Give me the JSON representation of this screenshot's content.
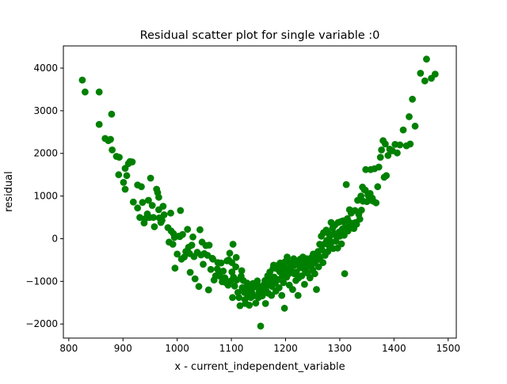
{
  "chart_data": {
    "type": "scatter",
    "title": "Residual scatter plot for single variable :0",
    "xlabel": "x - current_independent_variable",
    "ylabel": "residual",
    "xlim": [
      790,
      1515
    ],
    "ylim": [
      -2330,
      4520
    ],
    "xticks": [
      800,
      900,
      1000,
      1100,
      1200,
      1300,
      1400,
      1500
    ],
    "yticks": [
      -2000,
      -1000,
      0,
      1000,
      2000,
      3000,
      4000
    ],
    "grid": false,
    "legend": "none",
    "marker_color": "#008000",
    "series": [
      {
        "points": [
          [
            825,
            3720
          ],
          [
            830,
            3440
          ],
          [
            856,
            3440
          ],
          [
            856,
            2680
          ],
          [
            867,
            2350
          ],
          [
            873,
            2300
          ],
          [
            877,
            2330
          ],
          [
            880,
            2080
          ],
          [
            879,
            2920
          ],
          [
            888,
            1930
          ],
          [
            893,
            1910
          ],
          [
            892,
            1500
          ],
          [
            901,
            1320
          ],
          [
            904,
            1650
          ],
          [
            904,
            1160
          ],
          [
            907,
            1480
          ],
          [
            910,
            1760
          ],
          [
            913,
            1810
          ],
          [
            917,
            1800
          ],
          [
            919,
            860
          ],
          [
            927,
            720
          ],
          [
            927,
            1260
          ],
          [
            931,
            500
          ],
          [
            934,
            1220
          ],
          [
            936,
            850
          ],
          [
            939,
            370
          ],
          [
            941,
            470
          ],
          [
            945,
            580
          ],
          [
            947,
            900
          ],
          [
            949,
            500
          ],
          [
            951,
            1420
          ],
          [
            954,
            780
          ],
          [
            956,
            500
          ],
          [
            958,
            280
          ],
          [
            962,
            1160
          ],
          [
            964,
            1080
          ],
          [
            966,
            970
          ],
          [
            966,
            680
          ],
          [
            967,
            490
          ],
          [
            970,
            380
          ],
          [
            972,
            430
          ],
          [
            974,
            760
          ],
          [
            976,
            560
          ],
          [
            983,
            260
          ],
          [
            985,
            -80
          ],
          [
            988,
            600
          ],
          [
            989,
            180
          ],
          [
            992,
            -130
          ],
          [
            993,
            120
          ],
          [
            995,
            30
          ],
          [
            996,
            -690
          ],
          [
            1000,
            -360
          ],
          [
            1003,
            60
          ],
          [
            1005,
            50
          ],
          [
            1006,
            660
          ],
          [
            1008,
            -480
          ],
          [
            1010,
            100
          ],
          [
            1013,
            -430
          ],
          [
            1016,
            -300
          ],
          [
            1019,
            220
          ],
          [
            1021,
            -200
          ],
          [
            1023,
            -350
          ],
          [
            1024,
            -790
          ],
          [
            1027,
            -150
          ],
          [
            1029,
            40
          ],
          [
            1031,
            -420
          ],
          [
            1033,
            -940
          ],
          [
            1037,
            -320
          ],
          [
            1040,
            -1120
          ],
          [
            1042,
            210
          ],
          [
            1044,
            -380
          ],
          [
            1046,
            -80
          ],
          [
            1048,
            -600
          ],
          [
            1050,
            -350
          ],
          [
            1053,
            -160
          ],
          [
            1056,
            -390
          ],
          [
            1058,
            -1200
          ],
          [
            1059,
            -150
          ],
          [
            1062,
            -720
          ],
          [
            1065,
            -460
          ],
          [
            1066,
            -480
          ],
          [
            1068,
            -970
          ],
          [
            1071,
            -870
          ],
          [
            1074,
            -710
          ],
          [
            1075,
            -560
          ],
          [
            1077,
            -780
          ],
          [
            1079,
            -880
          ],
          [
            1081,
            -570
          ],
          [
            1083,
            -1010
          ],
          [
            1085,
            -760
          ],
          [
            1088,
            -920
          ],
          [
            1090,
            -1030
          ],
          [
            1092,
            -520
          ],
          [
            1094,
            -1090
          ],
          [
            1095,
            -500
          ],
          [
            1097,
            -340
          ],
          [
            1099,
            -990
          ],
          [
            1101,
            -780
          ],
          [
            1101,
            -560
          ],
          [
            1102,
            -1380
          ],
          [
            1103,
            -130
          ],
          [
            1104,
            -900
          ],
          [
            1106,
            -1110
          ],
          [
            1108,
            -660
          ],
          [
            1109,
            -440
          ],
          [
            1110,
            -970
          ],
          [
            1112,
            -1260
          ],
          [
            1114,
            -1380
          ],
          [
            1116,
            -1570
          ],
          [
            1118,
            -880
          ],
          [
            1119,
            -750
          ],
          [
            1120,
            -1150
          ],
          [
            1122,
            -980
          ],
          [
            1124,
            -1260
          ],
          [
            1125,
            -1430
          ],
          [
            1126,
            -1520
          ],
          [
            1127,
            -1210
          ],
          [
            1129,
            -1040
          ],
          [
            1130,
            -1310
          ],
          [
            1131,
            -1140
          ],
          [
            1133,
            -1560
          ],
          [
            1135,
            -1200
          ],
          [
            1136,
            -1380
          ],
          [
            1138,
            -1270
          ],
          [
            1140,
            -1050
          ],
          [
            1141,
            -1340
          ],
          [
            1143,
            -1130
          ],
          [
            1145,
            -1510
          ],
          [
            1146,
            -1070
          ],
          [
            1148,
            -990
          ],
          [
            1150,
            -1380
          ],
          [
            1151,
            -1250
          ],
          [
            1153,
            -1220
          ],
          [
            1154,
            -2050
          ],
          [
            1155,
            -1120
          ],
          [
            1157,
            -1340
          ],
          [
            1159,
            -1150
          ],
          [
            1160,
            -1270
          ],
          [
            1161,
            -1060
          ],
          [
            1162,
            -980
          ],
          [
            1163,
            -1520
          ],
          [
            1164,
            -1210
          ],
          [
            1166,
            -1090
          ],
          [
            1167,
            -870
          ],
          [
            1168,
            -1280
          ],
          [
            1170,
            -1040
          ],
          [
            1171,
            -780
          ],
          [
            1173,
            -940
          ],
          [
            1174,
            -1330
          ],
          [
            1175,
            -1120
          ],
          [
            1177,
            -690
          ],
          [
            1178,
            -620
          ],
          [
            1179,
            -900
          ],
          [
            1181,
            -1040
          ],
          [
            1182,
            -1230
          ],
          [
            1183,
            -700
          ],
          [
            1185,
            -630
          ],
          [
            1186,
            -960
          ],
          [
            1188,
            -1150
          ],
          [
            1189,
            -770
          ],
          [
            1190,
            -570
          ],
          [
            1192,
            -700
          ],
          [
            1193,
            -1330
          ],
          [
            1194,
            -880
          ],
          [
            1196,
            -1030
          ],
          [
            1197,
            -660
          ],
          [
            1198,
            -1630
          ],
          [
            1199,
            -540
          ],
          [
            1201,
            -780
          ],
          [
            1202,
            -900
          ],
          [
            1203,
            -430
          ],
          [
            1205,
            -680
          ],
          [
            1206,
            -820
          ],
          [
            1207,
            -1090
          ],
          [
            1209,
            -560
          ],
          [
            1210,
            -700
          ],
          [
            1211,
            -650
          ],
          [
            1213,
            -1190
          ],
          [
            1215,
            -470
          ],
          [
            1216,
            -820
          ],
          [
            1217,
            -620
          ],
          [
            1219,
            -980
          ],
          [
            1220,
            -780
          ],
          [
            1222,
            -550
          ],
          [
            1223,
            -1330
          ],
          [
            1224,
            -920
          ],
          [
            1226,
            -640
          ],
          [
            1227,
            -480
          ],
          [
            1229,
            -680
          ],
          [
            1230,
            -870
          ],
          [
            1232,
            -430
          ],
          [
            1233,
            -560
          ],
          [
            1235,
            -1070
          ],
          [
            1236,
            -740
          ],
          [
            1237,
            -600
          ],
          [
            1239,
            -470
          ],
          [
            1241,
            -810
          ],
          [
            1242,
            -650
          ],
          [
            1244,
            -540
          ],
          [
            1245,
            -920
          ],
          [
            1247,
            -630
          ],
          [
            1248,
            -440
          ],
          [
            1250,
            -730
          ],
          [
            1251,
            -360
          ],
          [
            1253,
            -570
          ],
          [
            1254,
            -820
          ],
          [
            1256,
            -400
          ],
          [
            1257,
            -1190
          ],
          [
            1258,
            -500
          ],
          [
            1260,
            -300
          ],
          [
            1261,
            -660
          ],
          [
            1263,
            -130
          ],
          [
            1264,
            -430
          ],
          [
            1266,
            60
          ],
          [
            1267,
            -260
          ],
          [
            1269,
            -560
          ],
          [
            1270,
            140
          ],
          [
            1272,
            -120
          ],
          [
            1273,
            -390
          ],
          [
            1275,
            200
          ],
          [
            1276,
            -40
          ],
          [
            1278,
            -300
          ],
          [
            1279,
            130
          ],
          [
            1281,
            -180
          ],
          [
            1282,
            60
          ],
          [
            1284,
            380
          ],
          [
            1285,
            -80
          ],
          [
            1287,
            250
          ],
          [
            1288,
            -230
          ],
          [
            1290,
            120
          ],
          [
            1291,
            320
          ],
          [
            1293,
            -60
          ],
          [
            1294,
            60
          ],
          [
            1296,
            -220
          ],
          [
            1297,
            380
          ],
          [
            1299,
            160
          ],
          [
            1300,
            60
          ],
          [
            1302,
            400
          ],
          [
            1303,
            -120
          ],
          [
            1305,
            230
          ],
          [
            1306,
            420
          ],
          [
            1308,
            80
          ],
          [
            1309,
            -820
          ],
          [
            1311,
            300
          ],
          [
            1312,
            1270
          ],
          [
            1314,
            470
          ],
          [
            1315,
            180
          ],
          [
            1317,
            390
          ],
          [
            1318,
            680
          ],
          [
            1320,
            250
          ],
          [
            1321,
            600
          ],
          [
            1323,
            310
          ],
          [
            1324,
            360
          ],
          [
            1326,
            240
          ],
          [
            1328,
            660
          ],
          [
            1329,
            380
          ],
          [
            1331,
            340
          ],
          [
            1333,
            900
          ],
          [
            1335,
            570
          ],
          [
            1337,
            460
          ],
          [
            1339,
            1000
          ],
          [
            1340,
            670
          ],
          [
            1342,
            1210
          ],
          [
            1343,
            880
          ],
          [
            1345,
            1150
          ],
          [
            1347,
            1140
          ],
          [
            1348,
            1620
          ],
          [
            1350,
            870
          ],
          [
            1352,
            1020
          ],
          [
            1354,
            900
          ],
          [
            1356,
            1060
          ],
          [
            1357,
            1620
          ],
          [
            1360,
            950
          ],
          [
            1362,
            880
          ],
          [
            1364,
            1640
          ],
          [
            1367,
            840
          ],
          [
            1370,
            1220
          ],
          [
            1372,
            1680
          ],
          [
            1375,
            1910
          ],
          [
            1377,
            2080
          ],
          [
            1380,
            2300
          ],
          [
            1382,
            1440
          ],
          [
            1384,
            2220
          ],
          [
            1386,
            1480
          ],
          [
            1389,
            1950
          ],
          [
            1392,
            2100
          ],
          [
            1397,
            2060
          ],
          [
            1402,
            2210
          ],
          [
            1406,
            2010
          ],
          [
            1411,
            2200
          ],
          [
            1417,
            2550
          ],
          [
            1423,
            2180
          ],
          [
            1428,
            2860
          ],
          [
            1430,
            2220
          ],
          [
            1434,
            3270
          ],
          [
            1439,
            2640
          ],
          [
            1449,
            3880
          ],
          [
            1457,
            3700
          ],
          [
            1460,
            4210
          ],
          [
            1469,
            3760
          ],
          [
            1476,
            3860
          ]
        ]
      }
    ]
  }
}
